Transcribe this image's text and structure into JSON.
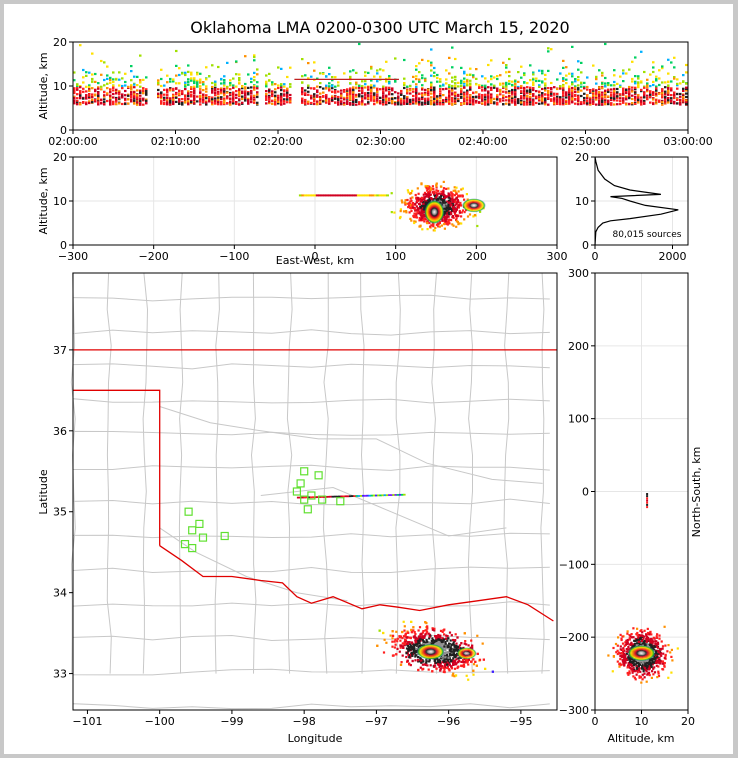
{
  "chart_data": [
    {
      "id": "altitude-time",
      "type": "heatmap",
      "title": "Oklahoma LMA 0200-0300 UTC March 15, 2020",
      "xlabel": "",
      "ylabel": "Altitude, km",
      "xlim": [
        "02:00:00",
        "03:00:00"
      ],
      "ylim": [
        0,
        20
      ],
      "x_ticks": [
        "02:00:00",
        "02:10:00",
        "02:20:00",
        "02:30:00",
        "02:40:00",
        "02:50:00",
        "03:00:00"
      ],
      "y_ticks": [
        0,
        10,
        20
      ],
      "grid": false
    },
    {
      "id": "altitude-eastwest",
      "type": "heatmap",
      "xlabel": "East-West, km",
      "ylabel": "Altitude, km",
      "xlim": [
        -300,
        300
      ],
      "ylim": [
        0,
        20
      ],
      "x_ticks": [
        "−300",
        "−200",
        "−100",
        "0",
        "100",
        "200",
        "300"
      ],
      "y_ticks": [
        0,
        10,
        20
      ],
      "grid": true,
      "clusters": [
        {
          "x_center": 150,
          "x_spread": 30,
          "alt_center": 9,
          "alt_spread": 3.5
        },
        {
          "x_range": [
            -20,
            90
          ],
          "altitude": 11.5
        }
      ]
    },
    {
      "id": "altitude-histogram",
      "type": "line",
      "xlim": [
        0,
        2400
      ],
      "ylim": [
        0,
        20
      ],
      "x_ticks": [
        0,
        2000
      ],
      "y_ticks": [
        0,
        10,
        20
      ],
      "annotation": "80,015 sources",
      "x": [
        0,
        20,
        80,
        200,
        400,
        900,
        1700,
        2150,
        1300,
        900,
        700,
        400,
        1700,
        900,
        500,
        250,
        80,
        20,
        0
      ],
      "y": [
        0,
        3,
        4,
        5,
        5.5,
        6,
        7,
        8,
        9,
        10,
        10.6,
        11,
        11.5,
        12.5,
        13.5,
        15,
        17,
        19,
        20
      ]
    },
    {
      "id": "plan-view",
      "type": "scatter",
      "xlabel": "Longitude",
      "ylabel": "Latitude",
      "xlim": [
        -101.2,
        -94.5
      ],
      "ylim": [
        32.55,
        37.95
      ],
      "x_ticks": [
        "−101",
        "−100",
        "−99",
        "−98",
        "−97",
        "−96",
        "−95"
      ],
      "y_ticks": [
        33,
        34,
        35,
        36,
        37
      ],
      "stations": [
        {
          "lon": -99.6,
          "lat": 35.0
        },
        {
          "lon": -99.45,
          "lat": 34.85
        },
        {
          "lon": -99.55,
          "lat": 34.77
        },
        {
          "lon": -99.4,
          "lat": 34.68
        },
        {
          "lon": -99.65,
          "lat": 34.6
        },
        {
          "lon": -99.55,
          "lat": 34.55
        },
        {
          "lon": -99.1,
          "lat": 34.7
        },
        {
          "lon": -98.0,
          "lat": 35.5
        },
        {
          "lon": -97.8,
          "lat": 35.45
        },
        {
          "lon": -98.05,
          "lat": 35.35
        },
        {
          "lon": -98.1,
          "lat": 35.25
        },
        {
          "lon": -97.9,
          "lat": 35.2
        },
        {
          "lon": -97.75,
          "lat": 35.15
        },
        {
          "lon": -98.0,
          "lat": 35.15
        },
        {
          "lon": -97.5,
          "lat": 35.13
        },
        {
          "lon": -97.95,
          "lat": 35.03
        }
      ],
      "clusters": [
        {
          "lon_center": -96.2,
          "lat_center": 33.3,
          "lon_spread": 0.45,
          "lat_spread": 0.2
        },
        {
          "lon_range": [
            -98.1,
            -96.6
          ],
          "lat": 35.2
        }
      ]
    },
    {
      "id": "north-south-altitude",
      "type": "heatmap",
      "xlabel": "Altitude, km",
      "ylabel": "North-South, km",
      "xlim": [
        0,
        20
      ],
      "ylim": [
        -300,
        300
      ],
      "x_ticks": [
        0,
        10,
        20
      ],
      "y_ticks": [
        "300",
        "200",
        "100",
        "0",
        "−100",
        "−200",
        "−300"
      ],
      "grid": true,
      "clusters": [
        {
          "alt_center": 10,
          "alt_spread": 4,
          "ns_center": -222,
          "ns_spread": 25
        }
      ]
    }
  ]
}
